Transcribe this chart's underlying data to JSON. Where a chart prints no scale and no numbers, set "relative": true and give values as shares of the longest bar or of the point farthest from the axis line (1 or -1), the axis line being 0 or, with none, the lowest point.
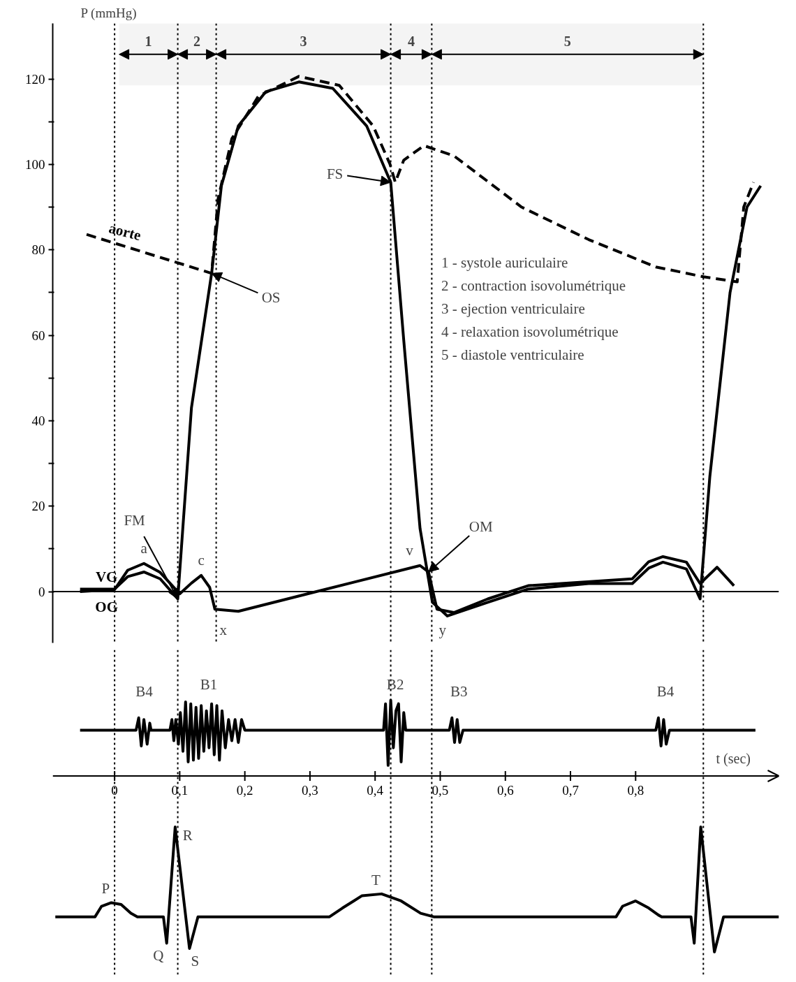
{
  "chart_data": [
    {
      "type": "line",
      "ylabel": "P (mmHg)",
      "xlim": [
        -0.095,
        1.02
      ],
      "ylim": [
        -12,
        133
      ],
      "yticks": [
        0,
        {
          "value": 10,
          "label": null
        },
        20,
        {
          "value": 30,
          "label": null
        },
        40,
        {
          "value": 50,
          "label": null
        },
        60,
        {
          "value": 70,
          "label": null
        },
        80,
        {
          "value": 90,
          "label": null
        },
        100,
        {
          "value": 110,
          "label": null
        },
        120
      ],
      "tick_labels": "y",
      "grid": false,
      "legend": false,
      "marker": "none",
      "series": [
        {
          "name": "aorte",
          "color": "#000000",
          "line_style": "dashed",
          "x": [
            -0.043,
            0.149,
            0.159,
            0.18,
            0.221,
            0.283,
            0.345,
            0.397,
            0.423,
            0.431,
            0.444,
            0.475,
            0.521,
            0.625,
            0.728,
            0.831,
            0.904,
            0.956,
            0.966,
            0.981
          ],
          "values": [
            83.6,
            74.5,
            92,
            106,
            116,
            120.6,
            118.5,
            109,
            100,
            95.8,
            101,
            104.4,
            102,
            90,
            82.4,
            76,
            73.7,
            72.5,
            90,
            95.8
          ]
        },
        {
          "name": "VG",
          "color": "#000000",
          "line_style": "solid",
          "x": [
            -0.053,
            0,
            0.02,
            0.045,
            0.07,
            0.097,
            0.118,
            0.149,
            0.164,
            0.19,
            0.232,
            0.283,
            0.335,
            0.387,
            0.424,
            0.444,
            0.469,
            0.488,
            0.511,
            0.573,
            0.635,
            0.728,
            0.795,
            0.82,
            0.842,
            0.878,
            0.899,
            0.914,
            0.945,
            0.971,
            0.992
          ],
          "values": [
            0.6,
            0.6,
            3.5,
            4.6,
            3,
            -1.7,
            43,
            74.5,
            95,
            109,
            117,
            119.3,
            117.8,
            109,
            95.8,
            58.8,
            14.8,
            -2.5,
            -5.7,
            -2.5,
            0.6,
            1.9,
            1.9,
            5.5,
            6.9,
            5.3,
            -1.7,
            27,
            70,
            90,
            95
          ]
        },
        {
          "name": "OG",
          "color": "#000000",
          "line_style": "solid",
          "x": [
            -0.053,
            0,
            0.02,
            0.045,
            0.07,
            0.1,
            0.118,
            0.133,
            0.146,
            0.154,
            0.19,
            0.294,
            0.469,
            0.482,
            0.495,
            0.521,
            0.573,
            0.635,
            0.795,
            0.82,
            0.842,
            0.878,
            0.899,
            0.925,
            0.951
          ],
          "values": [
            0,
            0.5,
            5,
            6.6,
            4.5,
            -0.5,
            2,
            3.8,
            1,
            -4.1,
            -4.6,
            -0.6,
            6.1,
            4.6,
            -4.1,
            -4.9,
            -1.7,
            1.4,
            3,
            7,
            8.2,
            6.9,
            1.9,
            5.7,
            1.4
          ]
        }
      ],
      "ref_lines": [
        {
          "axis": "y",
          "value": 0,
          "color": "#000000",
          "line_style": "solid"
        },
        {
          "axis": "x",
          "value": 0,
          "color": "#000000",
          "line_style": "dotted"
        },
        {
          "axis": "x",
          "value": 0.097,
          "color": "#000000",
          "line_style": "dotted"
        },
        {
          "axis": "x",
          "value": 0.156,
          "color": "#000000",
          "line_style": "dotted"
        },
        {
          "axis": "x",
          "value": 0.424,
          "color": "#000000",
          "line_style": "dotted"
        },
        {
          "axis": "x",
          "value": 0.487,
          "color": "#000000",
          "line_style": "dotted"
        },
        {
          "axis": "x",
          "value": 0.904,
          "color": "#000000",
          "line_style": "dotted"
        }
      ],
      "bands": [
        {
          "axis": "x",
          "from": 0.007,
          "to": 0.097,
          "label": "1",
          "color": "#f4f4f4"
        },
        {
          "axis": "x",
          "from": 0.097,
          "to": 0.156,
          "label": "2",
          "color": "#f4f4f4"
        },
        {
          "axis": "x",
          "from": 0.156,
          "to": 0.424,
          "label": "3",
          "color": "#f4f4f4"
        },
        {
          "axis": "x",
          "from": 0.424,
          "to": 0.487,
          "label": "4",
          "color": "#f4f4f4"
        },
        {
          "axis": "x",
          "from": 0.487,
          "to": 0.904,
          "label": "5",
          "color": "#f4f4f4"
        }
      ],
      "annotations": [
        "1 - systole auriculaire",
        "2 - contraction isovolumétrique",
        "3 - ejection ventriculaire",
        "4 - relaxation isovolumétrique",
        "5 - diastole ventriculaire",
        {
          "text": "FS",
          "x": 0.424,
          "y": 95.8
        },
        {
          "text": "OS",
          "x": 0.149,
          "y": 74.5
        },
        {
          "text": "FM",
          "x": 0.097,
          "y": -1.7
        },
        {
          "text": "OM",
          "x": 0.482,
          "y": 4.6
        },
        {
          "text": "a",
          "x": 0.045,
          "y": 6.6
        },
        {
          "text": "c",
          "x": 0.133,
          "y": 3.8
        },
        {
          "text": "x",
          "x": 0.154,
          "y": -4.1
        },
        {
          "text": "v",
          "x": 0.469,
          "y": 6.1
        },
        {
          "text": "y",
          "x": 0.495,
          "y": -4.1
        }
      ]
    },
    {
      "type": "line",
      "relative": true,
      "xlabel": "t (sec)",
      "xlim": [
        -0.095,
        1.02
      ],
      "xticks": [
        0,
        {
          "value": 0.1,
          "label": "0,1"
        },
        {
          "value": 0.2,
          "label": "0,2"
        },
        {
          "value": 0.3,
          "label": "0,3"
        },
        {
          "value": 0.4,
          "label": "0,4"
        },
        {
          "value": 0.5,
          "label": "0,5"
        },
        {
          "value": 0.6,
          "label": "0,6"
        },
        {
          "value": 0.7,
          "label": "0,7"
        },
        {
          "value": 0.8,
          "label": "0,8"
        }
      ],
      "tick_labels": "x",
      "grid": false,
      "legend": false,
      "marker": "none",
      "series": [
        {
          "color": "#000000",
          "line_style": "solid",
          "x": [
            -0.053,
            0.033,
            0.037,
            0.041,
            0.045,
            0.05,
            0.054,
            0.056,
            0.085,
            0.088,
            0.091,
            0.094,
            0.098,
            0.101,
            0.105,
            0.109,
            0.113,
            0.117,
            0.121,
            0.125,
            0.129,
            0.133,
            0.137,
            0.141,
            0.145,
            0.149,
            0.153,
            0.157,
            0.161,
            0.165,
            0.17,
            0.175,
            0.18,
            0.185,
            0.19,
            0.195,
            0.2,
            0.413,
            0.416,
            0.42,
            0.424,
            0.428,
            0.432,
            0.436,
            0.44,
            0.444,
            0.447,
            0.514,
            0.518,
            0.522,
            0.526,
            0.53,
            0.535,
            0.831,
            0.835,
            0.839,
            0.843,
            0.847,
            0.852,
            0.984
          ],
          "values": [
            0.26,
            0.26,
            0.33,
            0.17,
            0.32,
            0.18,
            0.3,
            0.26,
            0.26,
            0.32,
            0.2,
            0.32,
            0.18,
            0.36,
            0.14,
            0.42,
            0.08,
            0.41,
            0.09,
            0.39,
            0.1,
            0.4,
            0.14,
            0.37,
            0.16,
            0.41,
            0.12,
            0.4,
            0.09,
            0.37,
            0.16,
            0.32,
            0.2,
            0.32,
            0.19,
            0.32,
            0.26,
            0.26,
            0.41,
            0.06,
            0.43,
            0.16,
            0.37,
            0.41,
            0.08,
            0.36,
            0.26,
            0.26,
            0.33,
            0.19,
            0.32,
            0.19,
            0.26,
            0.26,
            0.33,
            0.17,
            0.32,
            0.18,
            0.26,
            0.26
          ]
        },
        {
          "color": "#000000",
          "line_style": "solid",
          "x": [
            -0.091,
            -0.03,
            -0.02,
            -0.005,
            0.01,
            0.025,
            0.035,
            0.075,
            0.08,
            0.093,
            0.115,
            0.128,
            0.33,
            0.35,
            0.38,
            0.41,
            0.44,
            0.47,
            0.49,
            0.77,
            0.78,
            0.8,
            0.82,
            0.835,
            0.84,
            0.885,
            0.89,
            0.9,
            0.921,
            0.935,
            1.02
          ],
          "values": [
            -0.8,
            -0.8,
            -0.74,
            -0.72,
            -0.73,
            -0.78,
            -0.8,
            -0.8,
            -0.95,
            -0.29,
            -0.98,
            -0.8,
            -0.8,
            -0.75,
            -0.68,
            -0.67,
            -0.71,
            -0.78,
            -0.8,
            -0.8,
            -0.74,
            -0.71,
            -0.75,
            -0.79,
            -0.8,
            -0.8,
            -0.95,
            -0.29,
            -1,
            -0.8,
            -0.8
          ]
        }
      ],
      "ref_lines": [
        {
          "axis": "x",
          "value": 0,
          "color": "#000000",
          "line_style": "dotted"
        },
        {
          "axis": "x",
          "value": 0.097,
          "color": "#000000",
          "line_style": "dotted"
        },
        {
          "axis": "x",
          "value": 0.424,
          "color": "#000000",
          "line_style": "dotted"
        },
        {
          "axis": "x",
          "value": 0.487,
          "color": "#000000",
          "line_style": "dotted"
        },
        {
          "axis": "x",
          "value": 0.904,
          "color": "#000000",
          "line_style": "dotted"
        }
      ],
      "annotations": [
        {
          "text": "B4",
          "x": 0.037,
          "y": 0.33
        },
        {
          "text": "B1",
          "x": 0.149,
          "y": 0.41
        },
        {
          "text": "B2",
          "x": 0.416,
          "y": 0.41
        },
        {
          "text": "B3",
          "x": 0.518,
          "y": 0.33
        },
        {
          "text": "B4",
          "x": 0.835,
          "y": 0.33
        },
        {
          "text": "P",
          "x": -0.005,
          "y": -0.72
        },
        {
          "text": "R",
          "x": 0.093,
          "y": -0.29
        },
        {
          "text": "T",
          "x": 0.41,
          "y": -0.67
        },
        {
          "text": "Q",
          "x": 0.08,
          "y": -0.95
        },
        {
          "text": "S",
          "x": 0.115,
          "y": -0.98
        }
      ]
    }
  ]
}
